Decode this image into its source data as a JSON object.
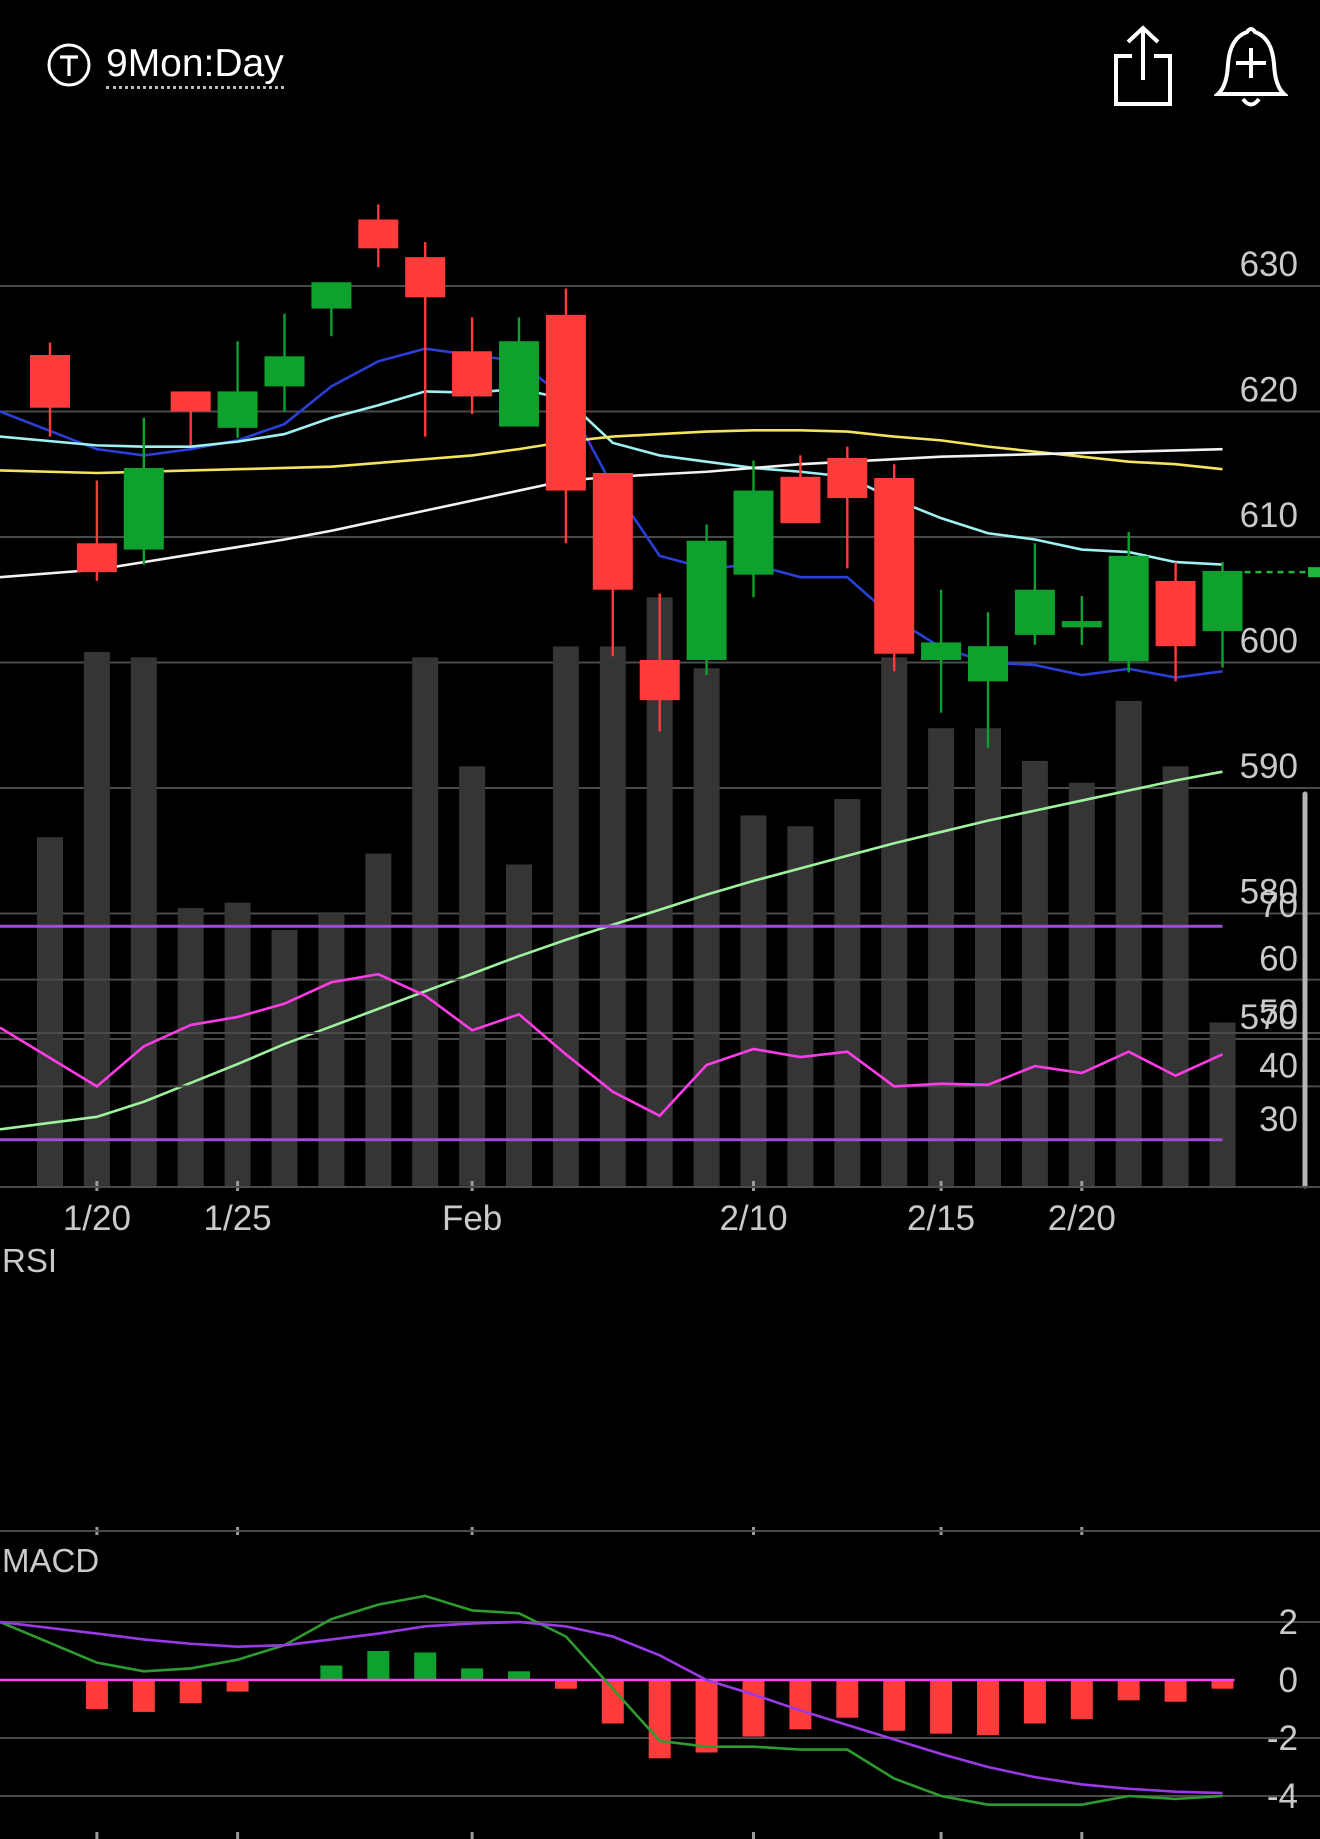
{
  "header": {
    "title": "9Mon:Day",
    "title_icon": "t-circle-icon",
    "share_icon": "share-icon",
    "alert_icon": "add-alert-bell-icon"
  },
  "colors": {
    "background": "#000000",
    "up": "#0fa12e",
    "down": "#ff3b3b",
    "volume": "#353535",
    "grid": "#4a4a4a",
    "ma_blue": "#2a3fd6",
    "ma_cyan": "#9ff0f0",
    "ma_yellow": "#f2e45c",
    "ma_white": "#f2f2f2",
    "ma_green": "#9ef29e",
    "rsi_line": "#ff3ce6",
    "rsi_bounds": "#a14cd6",
    "macd_line": "#2f9a2f",
    "signal_line": "#9a3ae6",
    "zero_line": "#ff44ee",
    "last_price_marker": "#1db83a"
  },
  "chart_data": [
    {
      "type": "candlestick",
      "y_ticks": [
        630,
        620,
        610,
        600,
        590,
        580,
        570
      ],
      "x_tick_labels": [
        {
          "index": 1,
          "label": "1/20"
        },
        {
          "index": 4,
          "label": "1/25"
        },
        {
          "index": 9,
          "label": "Feb"
        },
        {
          "index": 15,
          "label": "2/10"
        },
        {
          "index": 19,
          "label": "2/15"
        },
        {
          "index": 22,
          "label": "2/20"
        }
      ],
      "last_price": 607.2,
      "candles": [
        {
          "o": 624.5,
          "h": 625.5,
          "l": 618.0,
          "c": 620.3
        },
        {
          "o": 609.5,
          "h": 614.5,
          "l": 606.5,
          "c": 607.2
        },
        {
          "o": 609.0,
          "h": 619.5,
          "l": 607.8,
          "c": 615.5
        },
        {
          "o": 621.6,
          "h": 621.6,
          "l": 617.3,
          "c": 620.0
        },
        {
          "o": 618.7,
          "h": 625.6,
          "l": 617.9,
          "c": 621.6
        },
        {
          "o": 622.0,
          "h": 627.8,
          "l": 620.0,
          "c": 624.4
        },
        {
          "o": 628.2,
          "h": 630.2,
          "l": 626.0,
          "c": 630.3
        },
        {
          "o": 635.3,
          "h": 636.5,
          "l": 631.5,
          "c": 633.0
        },
        {
          "o": 632.3,
          "h": 633.5,
          "l": 618.0,
          "c": 629.1
        },
        {
          "o": 624.8,
          "h": 627.5,
          "l": 619.8,
          "c": 621.2
        },
        {
          "o": 618.8,
          "h": 627.5,
          "l": 618.8,
          "c": 625.6
        },
        {
          "o": 627.7,
          "h": 629.8,
          "l": 609.5,
          "c": 613.7
        },
        {
          "o": 615.1,
          "h": 615.1,
          "l": 600.5,
          "c": 605.8
        },
        {
          "o": 600.2,
          "h": 605.5,
          "l": 594.5,
          "c": 597.0
        },
        {
          "o": 600.2,
          "h": 611.0,
          "l": 599.0,
          "c": 609.7
        },
        {
          "o": 607.0,
          "h": 616.1,
          "l": 605.2,
          "c": 613.7
        },
        {
          "o": 614.8,
          "h": 616.5,
          "l": 611.2,
          "c": 611.1
        },
        {
          "o": 616.3,
          "h": 617.2,
          "l": 607.5,
          "c": 613.1
        },
        {
          "o": 614.7,
          "h": 615.8,
          "l": 599.3,
          "c": 600.7
        },
        {
          "o": 600.2,
          "h": 605.8,
          "l": 596.0,
          "c": 601.6
        },
        {
          "o": 598.5,
          "h": 604.0,
          "l": 593.2,
          "c": 601.3
        },
        {
          "o": 602.2,
          "h": 609.5,
          "l": 601.4,
          "c": 605.8
        },
        {
          "o": 602.8,
          "h": 605.3,
          "l": 601.4,
          "c": 603.3
        },
        {
          "o": 600.1,
          "h": 610.4,
          "l": 599.2,
          "c": 608.5
        },
        {
          "o": 606.5,
          "h": 608.0,
          "l": 598.5,
          "c": 601.3
        },
        {
          "o": 602.5,
          "h": 608.0,
          "l": 599.6,
          "c": 607.3
        }
      ],
      "volume_relative": [
        0.64,
        0.98,
        0.97,
        0.51,
        0.52,
        0.47,
        0.5,
        0.61,
        0.97,
        0.77,
        0.59,
        0.99,
        0.99,
        1.08,
        0.95,
        0.68,
        0.66,
        0.71,
        0.97,
        0.84,
        0.84,
        0.78,
        0.74,
        0.89,
        0.77,
        0.3
      ],
      "moving_averages": [
        {
          "color_key": "ma_blue",
          "values": [
            620.0,
            617.0,
            616.5,
            617.0,
            617.7,
            619.0,
            622.0,
            624.0,
            625.0,
            624.5,
            624.0,
            621.0,
            614.0,
            608.5,
            607.5,
            607.8,
            606.8,
            606.8,
            603.5,
            601.2,
            600.0,
            599.8,
            599.0,
            599.5,
            598.8,
            599.3
          ]
        },
        {
          "color_key": "ma_cyan",
          "values": [
            618.0,
            617.3,
            617.2,
            617.2,
            617.6,
            618.2,
            619.5,
            620.5,
            621.6,
            621.5,
            621.8,
            621.0,
            617.5,
            616.5,
            616.0,
            615.5,
            615.2,
            614.8,
            613.0,
            611.5,
            610.3,
            609.8,
            609.0,
            608.8,
            608.0,
            607.8
          ]
        },
        {
          "color_key": "ma_yellow",
          "values": [
            615.3,
            615.1,
            615.2,
            615.3,
            615.4,
            615.5,
            615.6,
            615.9,
            616.2,
            616.5,
            617.0,
            617.6,
            618.0,
            618.2,
            618.4,
            618.5,
            618.5,
            618.4,
            618.0,
            617.7,
            617.2,
            616.8,
            616.4,
            616.0,
            615.8,
            615.4
          ]
        },
        {
          "color_key": "ma_white",
          "values": [
            606.8,
            607.4,
            608.0,
            608.6,
            609.2,
            609.8,
            610.5,
            611.3,
            612.1,
            612.9,
            613.7,
            614.5,
            614.8,
            615.0,
            615.2,
            615.5,
            615.8,
            616.0,
            616.2,
            616.4,
            616.5,
            616.6,
            616.7,
            616.8,
            616.9,
            617.0
          ]
        },
        {
          "color_key": "ma_green",
          "values": [
            562.8,
            563.8,
            565.0,
            566.5,
            568.0,
            569.6,
            571.0,
            572.4,
            573.8,
            575.2,
            576.6,
            577.9,
            579.1,
            580.3,
            581.5,
            582.6,
            583.6,
            584.6,
            585.6,
            586.5,
            587.4,
            588.2,
            589.0,
            589.8,
            590.6,
            591.3
          ]
        }
      ]
    },
    {
      "type": "line",
      "title": "RSI",
      "y_ticks": [
        70,
        60,
        50,
        40,
        30
      ],
      "bounds": [
        70,
        30
      ],
      "values": [
        51.0,
        40.0,
        47.5,
        51.5,
        53.0,
        55.5,
        59.5,
        61.0,
        57.0,
        50.5,
        53.5,
        46.0,
        39.0,
        34.5,
        44.0,
        47.0,
        45.5,
        46.5,
        40.0,
        40.5,
        40.3,
        43.8,
        42.5,
        46.5,
        42.0,
        46.0
      ]
    },
    {
      "type": "macd",
      "title": "MACD",
      "y_ticks": [
        2,
        0,
        -2,
        -4
      ],
      "macd": [
        2.0,
        0.6,
        0.3,
        0.4,
        0.7,
        1.2,
        2.1,
        2.6,
        2.9,
        2.4,
        2.3,
        1.5,
        -0.3,
        -2.1,
        -2.3,
        -2.3,
        -2.4,
        -2.4,
        -3.4,
        -4.0,
        -4.3,
        -4.3,
        -4.3,
        -4.0,
        -4.1,
        -4.0
      ],
      "signal": [
        2.0,
        1.6,
        1.4,
        1.25,
        1.15,
        1.2,
        1.4,
        1.6,
        1.85,
        1.95,
        2.0,
        1.85,
        1.5,
        0.85,
        0.0,
        -0.5,
        -1.05,
        -1.55,
        -2.05,
        -2.55,
        -3.0,
        -3.35,
        -3.6,
        -3.75,
        -3.85,
        -3.9
      ],
      "histogram": [
        0.0,
        -1.0,
        -1.1,
        -0.8,
        -0.4,
        0.0,
        0.5,
        1.0,
        0.95,
        0.4,
        0.3,
        -0.3,
        -1.5,
        -2.7,
        -2.5,
        -1.95,
        -1.7,
        -1.3,
        -1.75,
        -1.85,
        -1.9,
        -1.5,
        -1.35,
        -0.7,
        -0.75,
        -0.3
      ]
    }
  ]
}
